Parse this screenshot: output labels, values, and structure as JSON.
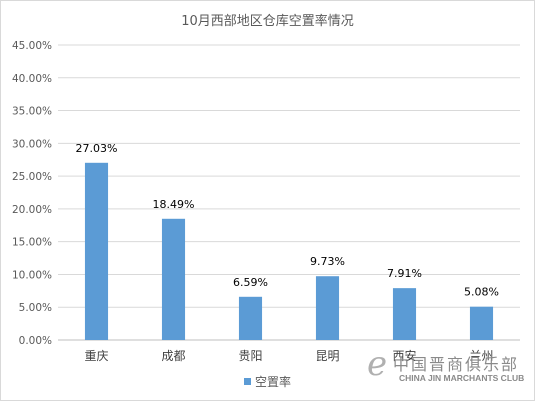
{
  "chart_data": {
    "type": "bar",
    "title": "10月西部地区仓库空置率情况",
    "categories": [
      "重庆",
      "成都",
      "贵阳",
      "昆明",
      "西安",
      "兰州"
    ],
    "series": [
      {
        "name": "空置率",
        "values": [
          27.03,
          18.49,
          6.59,
          9.73,
          7.91,
          5.08
        ],
        "labels": [
          "27.03%",
          "18.49%",
          "6.59%",
          "9.73%",
          "7.91%",
          "5.08%"
        ]
      }
    ],
    "ylim": [
      0,
      45
    ],
    "yticks": [
      "0.00%",
      "5.00%",
      "10.00%",
      "15.00%",
      "20.00%",
      "25.00%",
      "30.00%",
      "35.00%",
      "40.00%",
      "45.00%"
    ],
    "grid": true,
    "legend_position": "bottom",
    "bar_color": "#5b9bd5"
  },
  "watermark": {
    "symbol": "e",
    "chinese": "中国晋商俱乐部",
    "english": "CHINA JIN MARCHANTS CLUB"
  }
}
